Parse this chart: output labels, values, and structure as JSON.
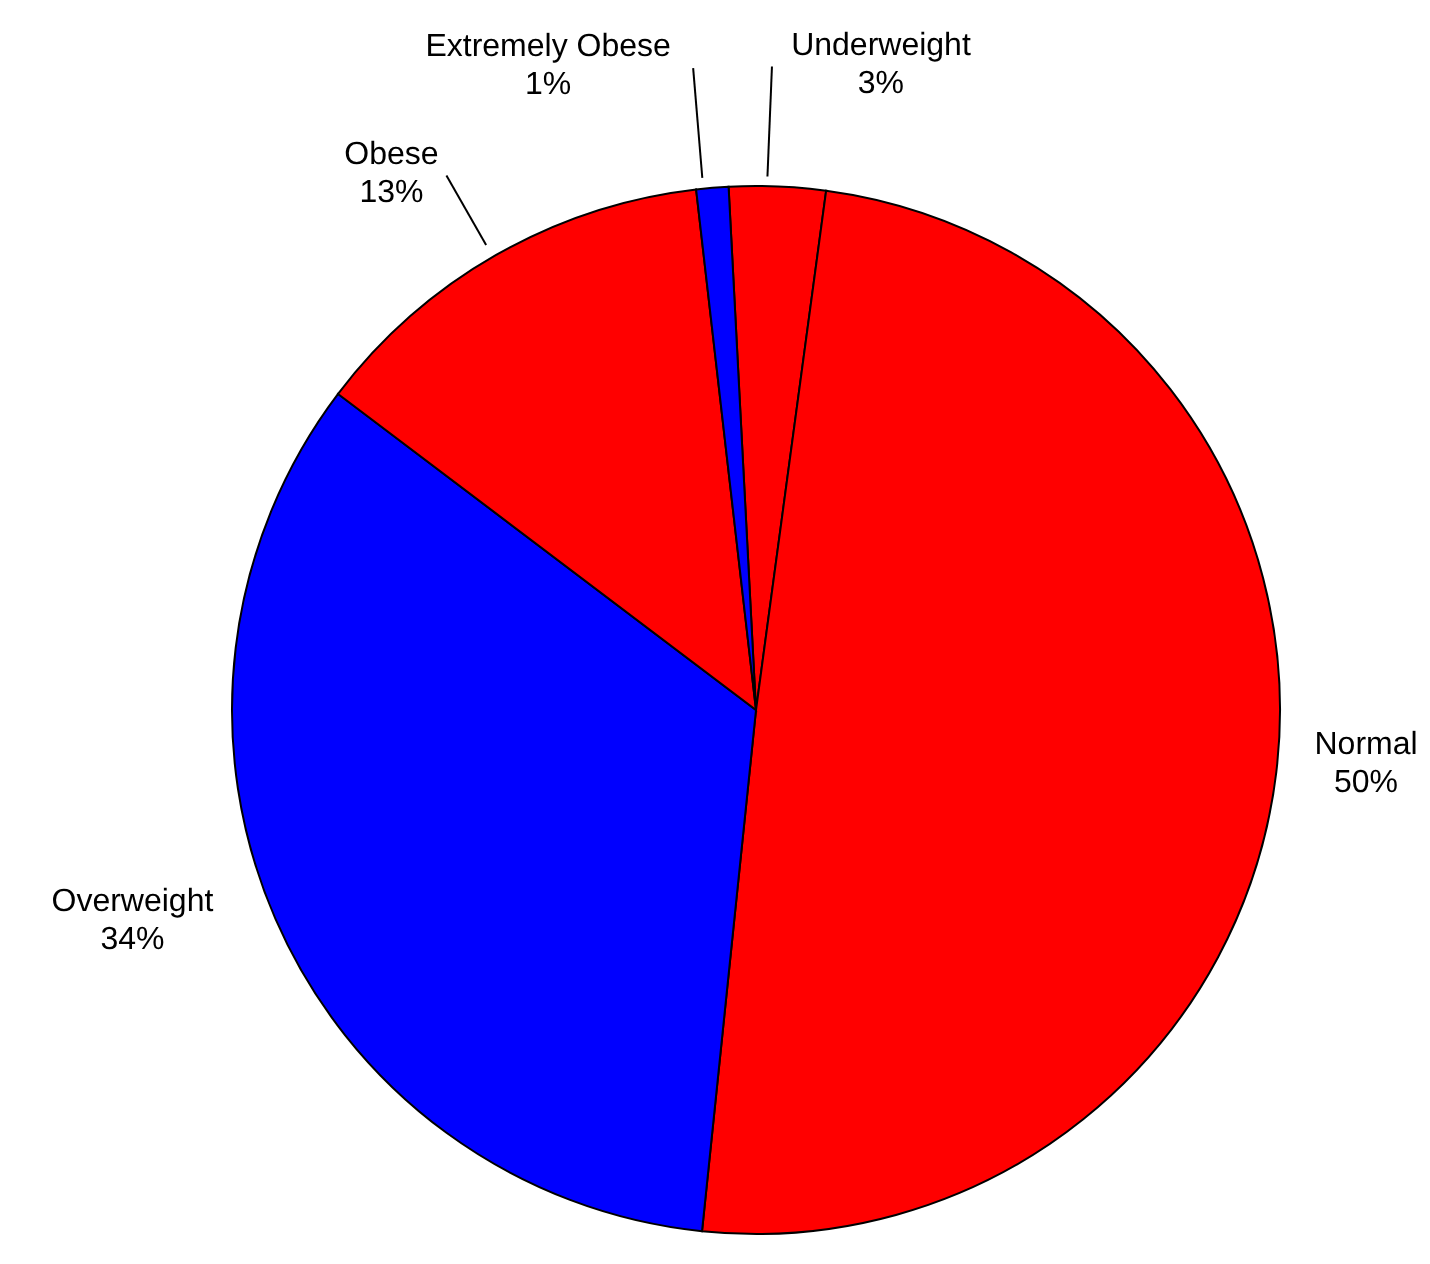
{
  "chart_data": {
    "type": "pie",
    "categories": [
      "Underweight",
      "Normal",
      "Overweight",
      "Obese",
      "Extremely Obese"
    ],
    "values": [
      3,
      50,
      34,
      13,
      1
    ],
    "colors": [
      "#ff0000",
      "#ff0000",
      "#0000ff",
      "#ff0000",
      "#0000ff"
    ],
    "value_labels": [
      "3%",
      "50%",
      "34%",
      "13%",
      "1%"
    ],
    "legend": false
  }
}
